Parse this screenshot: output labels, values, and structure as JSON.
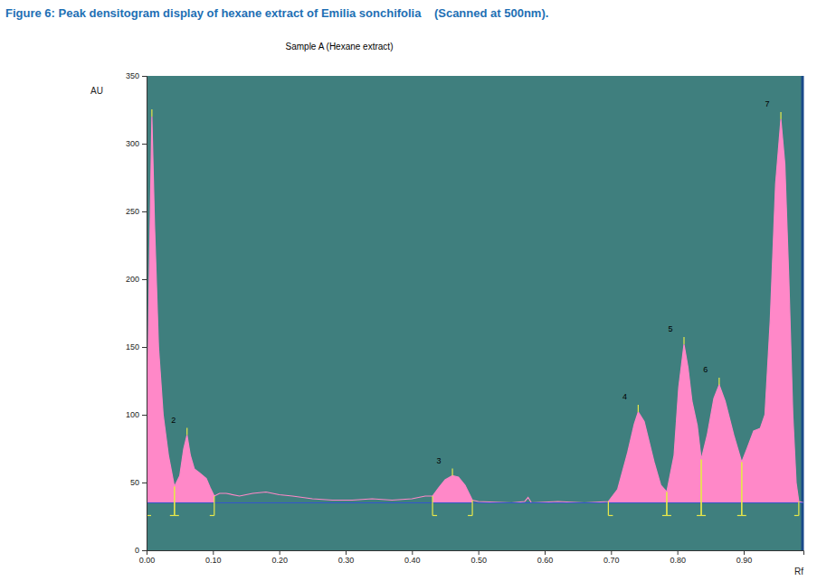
{
  "chart_data": {
    "type": "area",
    "title": "Figure 6: Peak densitogram display of hexane extract of Emilia sonchifolia    (Scanned at 500nm).",
    "subtitle": "Sample A (Hexane extract)",
    "y_label": "AU",
    "x_label": "Rf",
    "color": "#ff88c8",
    "xlim": [
      0,
      0.99
    ],
    "xticks": [
      {
        "value": 0,
        "label": "0.00"
      },
      {
        "value": 0.1,
        "label": "0.10"
      },
      {
        "value": 0.2,
        "label": "0.20"
      },
      {
        "value": 0.3,
        "label": "0.30"
      },
      {
        "value": 0.4,
        "label": "0.40"
      },
      {
        "value": 0.5,
        "label": "0.50"
      },
      {
        "value": 0.6,
        "label": "0.60"
      },
      {
        "value": 0.7,
        "label": "0.70"
      },
      {
        "value": 0.8,
        "label": "0.80"
      },
      {
        "value": 0.9,
        "label": "0.90"
      }
    ],
    "ylim": [
      0,
      350
    ],
    "yticks": [
      0,
      50,
      100,
      150,
      200,
      250,
      300,
      350
    ],
    "baseline": 35,
    "x": [
      0.0,
      0.004,
      0.008,
      0.012,
      0.018,
      0.025,
      0.033,
      0.042,
      0.05,
      0.056,
      0.061,
      0.066,
      0.072,
      0.08,
      0.09,
      0.096,
      0.102,
      0.11,
      0.12,
      0.14,
      0.16,
      0.18,
      0.2,
      0.22,
      0.25,
      0.28,
      0.31,
      0.34,
      0.37,
      0.4,
      0.42,
      0.431,
      0.44,
      0.45,
      0.461,
      0.47,
      0.48,
      0.491,
      0.5,
      0.55,
      0.57,
      0.575,
      0.58,
      0.62,
      0.66,
      0.696,
      0.71,
      0.725,
      0.735,
      0.741,
      0.75,
      0.765,
      0.775,
      0.784,
      0.795,
      0.802,
      0.81,
      0.816,
      0.822,
      0.83,
      0.836,
      0.845,
      0.855,
      0.863,
      0.872,
      0.885,
      0.897,
      0.905,
      0.915,
      0.925,
      0.932,
      0.94,
      0.948,
      0.956,
      0.962,
      0.968,
      0.974,
      0.979,
      0.983,
      0.99
    ],
    "values": [
      55,
      200,
      320,
      240,
      150,
      100,
      70,
      47,
      55,
      75,
      85,
      70,
      60,
      57,
      53,
      46,
      40,
      42,
      42,
      40,
      42,
      43,
      41,
      40,
      38,
      37,
      37,
      38,
      37,
      38,
      40,
      40,
      46,
      52,
      55,
      54,
      48,
      37,
      36,
      35,
      36,
      39,
      35,
      36,
      35,
      36,
      45,
      72,
      93,
      102,
      95,
      65,
      48,
      43,
      70,
      120,
      152,
      135,
      110,
      92,
      67,
      85,
      112,
      122,
      110,
      85,
      65,
      75,
      88,
      90,
      100,
      170,
      270,
      318,
      285,
      200,
      100,
      50,
      36,
      35
    ],
    "peaks": [
      {
        "label": null,
        "start": 0,
        "max": 0.008,
        "end": 0.042
      },
      {
        "label": 2,
        "start": 0.042,
        "max": 0.061,
        "end": 0.102
      },
      {
        "label": 3,
        "start": 0.431,
        "max": 0.461,
        "end": 0.491
      },
      {
        "label": 4,
        "start": 0.696,
        "max": 0.741,
        "end": 0.784
      },
      {
        "label": 5,
        "start": 0.784,
        "max": 0.81,
        "end": 0.836
      },
      {
        "label": 6,
        "start": 0.836,
        "max": 0.863,
        "end": 0.897
      },
      {
        "label": 7,
        "start": 0.897,
        "max": 0.956,
        "end": 0.983
      }
    ]
  }
}
